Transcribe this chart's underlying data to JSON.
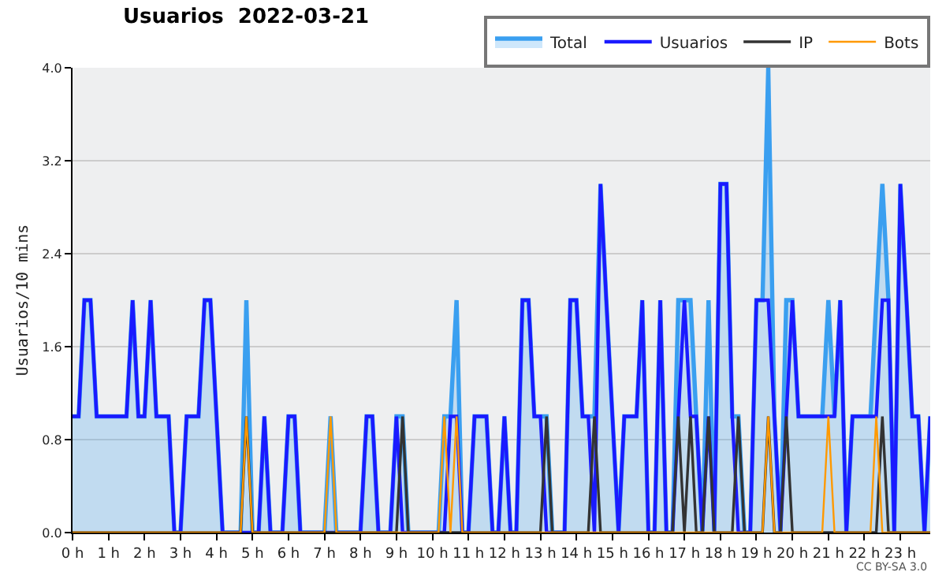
{
  "chart_data": {
    "type": "line",
    "title": "Usuarios  2022-03-21",
    "ylabel": "Usuarios/10 mins",
    "x": [
      0,
      0.17,
      0.33,
      0.5,
      0.67,
      0.83,
      1,
      1.17,
      1.33,
      1.5,
      1.67,
      1.83,
      2,
      2.17,
      2.33,
      2.5,
      2.67,
      2.83,
      3,
      3.17,
      3.33,
      3.5,
      3.67,
      3.83,
      4,
      4.17,
      4.33,
      4.5,
      4.67,
      4.83,
      5,
      5.17,
      5.33,
      5.5,
      5.67,
      5.83,
      6,
      6.17,
      6.33,
      6.5,
      6.67,
      6.83,
      7,
      7.17,
      7.33,
      7.5,
      7.67,
      7.83,
      8,
      8.17,
      8.33,
      8.5,
      8.67,
      8.83,
      9,
      9.17,
      9.33,
      9.5,
      9.67,
      9.83,
      10,
      10.17,
      10.33,
      10.5,
      10.67,
      10.83,
      11,
      11.17,
      11.33,
      11.5,
      11.67,
      11.83,
      12,
      12.17,
      12.33,
      12.5,
      12.67,
      12.83,
      13,
      13.17,
      13.33,
      13.5,
      13.67,
      13.83,
      14,
      14.17,
      14.33,
      14.5,
      14.67,
      14.83,
      15,
      15.17,
      15.33,
      15.5,
      15.67,
      15.83,
      16,
      16.17,
      16.33,
      16.5,
      16.67,
      16.83,
      17,
      17.17,
      17.33,
      17.5,
      17.67,
      17.83,
      18,
      18.17,
      18.33,
      18.5,
      18.67,
      18.83,
      19,
      19.17,
      19.33,
      19.5,
      19.67,
      19.83,
      20,
      20.17,
      20.33,
      20.5,
      20.67,
      20.83,
      21,
      21.17,
      21.33,
      21.5,
      21.67,
      21.83,
      22,
      22.17,
      22.33,
      22.5,
      22.67,
      22.83,
      23,
      23.17,
      23.33,
      23.5,
      23.67,
      23.83
    ],
    "series": [
      {
        "name": "Total",
        "type": "area",
        "color": "#3a9ff0",
        "values": [
          1,
          1,
          2,
          2,
          1,
          1,
          1,
          1,
          1,
          1,
          2,
          1,
          1,
          2,
          1,
          1,
          1,
          0,
          0,
          1,
          1,
          1,
          2,
          2,
          1,
          0,
          0,
          0,
          0,
          2,
          0,
          0,
          1,
          0,
          0,
          0,
          1,
          1,
          0,
          0,
          0,
          0,
          0,
          1,
          0,
          0,
          0,
          0,
          0,
          1,
          1,
          0,
          0,
          0,
          1,
          1,
          0,
          0,
          0,
          0,
          0,
          0,
          1,
          1,
          2,
          0,
          0,
          1,
          1,
          1,
          0,
          0,
          1,
          0,
          0,
          2,
          2,
          1,
          1,
          1,
          0,
          0,
          0,
          2,
          2,
          1,
          1,
          1,
          3,
          2,
          1,
          0,
          1,
          1,
          1,
          2,
          0,
          0,
          2,
          0,
          0,
          2,
          2,
          2,
          1,
          0,
          2,
          0,
          3,
          3,
          1,
          1,
          0,
          0,
          2,
          2,
          4,
          1,
          0,
          2,
          2,
          1,
          1,
          1,
          1,
          1,
          2,
          1,
          2,
          0,
          1,
          1,
          1,
          1,
          2,
          3,
          2,
          0,
          3,
          2,
          1,
          1,
          0,
          1
        ]
      },
      {
        "name": "Usuarios",
        "color": "#1a1aff",
        "values": [
          1,
          1,
          2,
          2,
          1,
          1,
          1,
          1,
          1,
          1,
          2,
          1,
          1,
          2,
          1,
          1,
          1,
          0,
          0,
          1,
          1,
          1,
          2,
          2,
          1,
          0,
          0,
          0,
          0,
          0,
          0,
          0,
          1,
          0,
          0,
          0,
          1,
          1,
          0,
          0,
          0,
          0,
          0,
          0,
          0,
          0,
          0,
          0,
          0,
          1,
          1,
          0,
          0,
          0,
          1,
          0,
          0,
          0,
          0,
          0,
          0,
          0,
          0,
          1,
          1,
          0,
          0,
          1,
          1,
          1,
          0,
          0,
          1,
          0,
          0,
          2,
          2,
          1,
          1,
          0,
          0,
          0,
          0,
          2,
          2,
          1,
          1,
          0,
          3,
          2,
          1,
          0,
          1,
          1,
          1,
          2,
          0,
          0,
          2,
          0,
          0,
          1,
          2,
          1,
          1,
          0,
          1,
          0,
          3,
          3,
          1,
          0,
          0,
          0,
          2,
          2,
          2,
          1,
          0,
          1,
          2,
          1,
          1,
          1,
          1,
          1,
          1,
          1,
          2,
          0,
          1,
          1,
          1,
          1,
          1,
          2,
          2,
          0,
          3,
          2,
          1,
          1,
          0,
          1
        ]
      },
      {
        "name": "IP",
        "color": "#333333",
        "values": [
          0,
          0,
          0,
          0,
          0,
          0,
          0,
          0,
          0,
          0,
          0,
          0,
          0,
          0,
          0,
          0,
          0,
          0,
          0,
          0,
          0,
          0,
          0,
          0,
          0,
          0,
          0,
          0,
          0,
          1,
          0,
          0,
          0,
          0,
          0,
          0,
          0,
          0,
          0,
          0,
          0,
          0,
          0,
          0,
          0,
          0,
          0,
          0,
          0,
          0,
          0,
          0,
          0,
          0,
          0,
          1,
          0,
          0,
          0,
          0,
          0,
          0,
          0,
          0,
          0,
          0,
          0,
          0,
          0,
          0,
          0,
          0,
          0,
          0,
          0,
          0,
          0,
          0,
          0,
          1,
          0,
          0,
          0,
          0,
          0,
          0,
          0,
          1,
          0,
          0,
          0,
          0,
          0,
          0,
          0,
          0,
          0,
          0,
          0,
          0,
          0,
          1,
          0,
          1,
          0,
          0,
          1,
          0,
          0,
          0,
          0,
          1,
          0,
          0,
          0,
          0,
          1,
          0,
          0,
          1,
          0,
          0,
          0,
          0,
          0,
          0,
          0,
          0,
          0,
          0,
          0,
          0,
          0,
          0,
          0,
          1,
          0,
          0,
          0,
          0,
          0,
          0,
          0,
          0
        ]
      },
      {
        "name": "Bots",
        "color": "#ff9900",
        "values": [
          0,
          0,
          0,
          0,
          0,
          0,
          0,
          0,
          0,
          0,
          0,
          0,
          0,
          0,
          0,
          0,
          0,
          0,
          0,
          0,
          0,
          0,
          0,
          0,
          0,
          0,
          0,
          0,
          0,
          1,
          0,
          0,
          0,
          0,
          0,
          0,
          0,
          0,
          0,
          0,
          0,
          0,
          0,
          1,
          0,
          0,
          0,
          0,
          0,
          0,
          0,
          0,
          0,
          0,
          0,
          0,
          0,
          0,
          0,
          0,
          0,
          0,
          1,
          0,
          1,
          0,
          0,
          0,
          0,
          0,
          0,
          0,
          0,
          0,
          0,
          0,
          0,
          0,
          0,
          0,
          0,
          0,
          0,
          0,
          0,
          0,
          0,
          0,
          0,
          0,
          0,
          0,
          0,
          0,
          0,
          0,
          0,
          0,
          0,
          0,
          0,
          0,
          0,
          0,
          0,
          0,
          0,
          0,
          0,
          0,
          0,
          0,
          0,
          0,
          0,
          0,
          1,
          0,
          0,
          0,
          0,
          0,
          0,
          0,
          0,
          0,
          1,
          0,
          0,
          0,
          0,
          0,
          0,
          0,
          1,
          0,
          0,
          0,
          0,
          0,
          0,
          0,
          0,
          0
        ]
      }
    ],
    "xlim": [
      0,
      23.83
    ],
    "xticks": [
      {
        "value": 0,
        "label": "0 h"
      },
      {
        "value": 1,
        "label": "1 h"
      },
      {
        "value": 2,
        "label": "2 h"
      },
      {
        "value": 3,
        "label": "3 h"
      },
      {
        "value": 4,
        "label": "4 h"
      },
      {
        "value": 5,
        "label": "5 h"
      },
      {
        "value": 6,
        "label": "6 h"
      },
      {
        "value": 7,
        "label": "7 h"
      },
      {
        "value": 8,
        "label": "8 h"
      },
      {
        "value": 9,
        "label": "9 h"
      },
      {
        "value": 10,
        "label": "10 h"
      },
      {
        "value": 11,
        "label": "11 h"
      },
      {
        "value": 12,
        "label": "12 h"
      },
      {
        "value": 13,
        "label": "13 h"
      },
      {
        "value": 14,
        "label": "14 h"
      },
      {
        "value": 15,
        "label": "15 h"
      },
      {
        "value": 16,
        "label": "16 h"
      },
      {
        "value": 17,
        "label": "17 h"
      },
      {
        "value": 18,
        "label": "18 h"
      },
      {
        "value": 19,
        "label": "19 h"
      },
      {
        "value": 20,
        "label": "20 h"
      },
      {
        "value": 21,
        "label": "21 h"
      },
      {
        "value": 22,
        "label": "22 h"
      },
      {
        "value": 23,
        "label": "23 h"
      }
    ],
    "ylim": [
      0,
      4
    ],
    "yticks": [
      {
        "value": 0,
        "label": "0.0"
      },
      {
        "value": 0.8,
        "label": "0.8"
      },
      {
        "value": 1.6,
        "label": "1.6"
      },
      {
        "value": 2.4,
        "label": "2.4"
      },
      {
        "value": 3.2,
        "label": "3.2"
      },
      {
        "value": 4,
        "label": "4.0"
      }
    ],
    "grid": "y",
    "legend": "top right",
    "marker": "none",
    "line_style": "solid",
    "annotations": [
      "CC BY-SA 3.0"
    ]
  }
}
